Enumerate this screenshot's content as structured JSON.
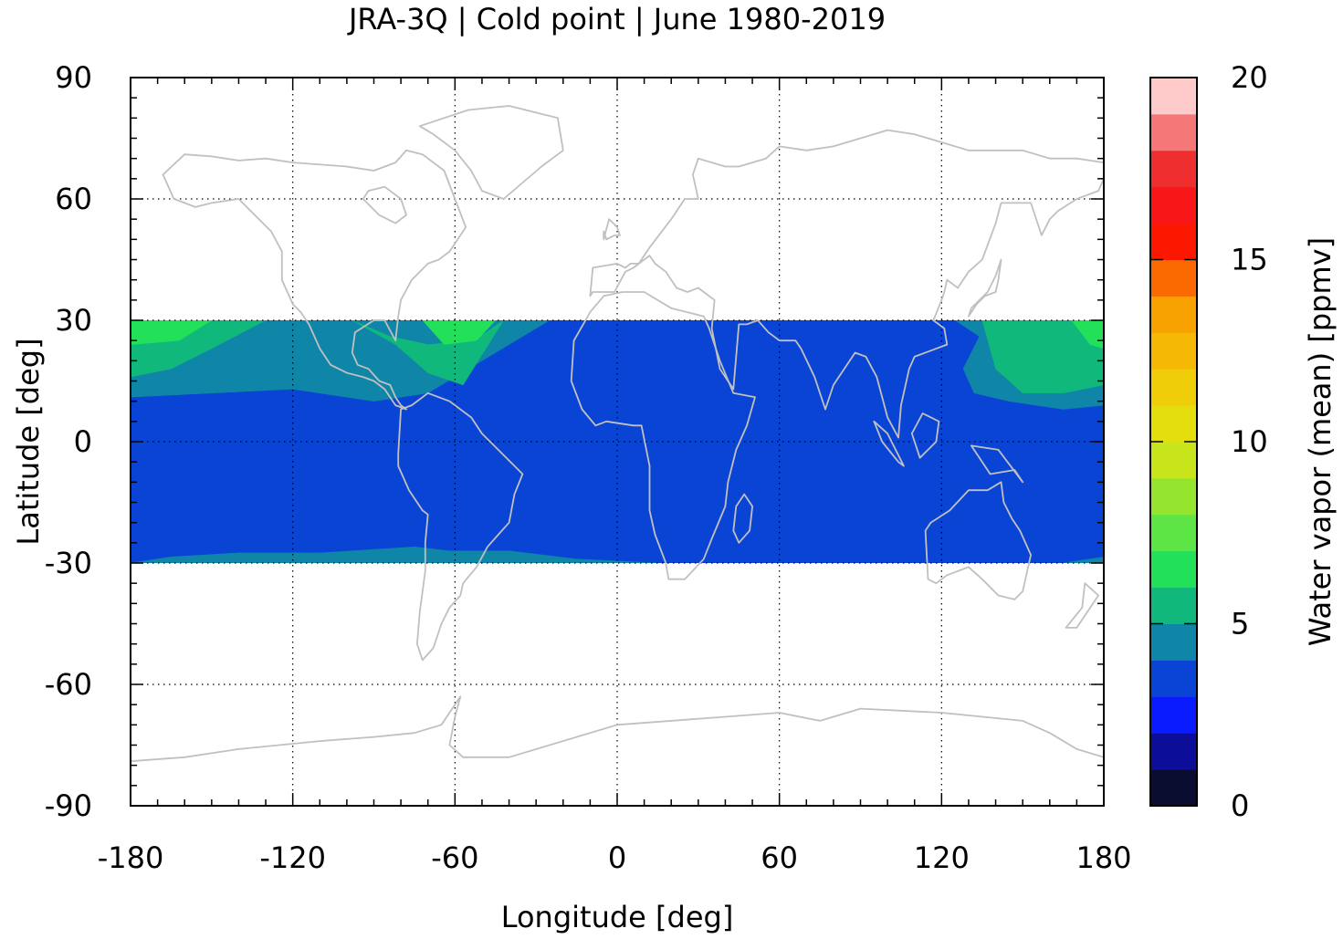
{
  "chart_data": {
    "type": "heatmap",
    "title": "JRA-3Q | Cold point | June 1980-2019",
    "xlabel": "Longitude [deg]",
    "ylabel": "Latitude [deg]",
    "xlim": [
      -180,
      180
    ],
    "ylim": [
      -90,
      90
    ],
    "xticks": [
      "-180",
      "-120",
      "-60",
      "0",
      "60",
      "120",
      "180"
    ],
    "yticks": [
      "90",
      "60",
      "30",
      "0",
      "-30",
      "-60",
      "-90"
    ],
    "xtick_values": [
      -180,
      -120,
      -60,
      0,
      60,
      120,
      180
    ],
    "ytick_values": [
      90,
      60,
      30,
      0,
      -30,
      -60,
      -90
    ],
    "grid": true,
    "data_lat_range": [
      -30,
      30
    ],
    "colorbar": {
      "label": "Water vapor (mean) [ppmv]",
      "range": [
        0,
        20
      ],
      "ticks": [
        "0",
        "5",
        "10",
        "15",
        "20"
      ],
      "tick_values": [
        0,
        5,
        10,
        15,
        20
      ],
      "levels": [
        {
          "from": 0,
          "to": 1,
          "color": "#0b0d30"
        },
        {
          "from": 1,
          "to": 2,
          "color": "#0c0e9a"
        },
        {
          "from": 2,
          "to": 3,
          "color": "#0a1cff"
        },
        {
          "from": 3,
          "to": 4,
          "color": "#0a44d4"
        },
        {
          "from": 4,
          "to": 5,
          "color": "#0f86a8"
        },
        {
          "from": 5,
          "to": 6,
          "color": "#10b87c"
        },
        {
          "from": 6,
          "to": 7,
          "color": "#22e05a"
        },
        {
          "from": 7,
          "to": 8,
          "color": "#5de445"
        },
        {
          "from": 8,
          "to": 9,
          "color": "#95e52e"
        },
        {
          "from": 9,
          "to": 10,
          "color": "#c7e51a"
        },
        {
          "from": 10,
          "to": 11,
          "color": "#e4de0e"
        },
        {
          "from": 11,
          "to": 12,
          "color": "#efcd08"
        },
        {
          "from": 12,
          "to": 13,
          "color": "#f5b805"
        },
        {
          "from": 13,
          "to": 14,
          "color": "#f7a200"
        },
        {
          "from": 14,
          "to": 15,
          "color": "#fb6a00"
        },
        {
          "from": 15,
          "to": 16,
          "color": "#fc1800"
        },
        {
          "from": 16,
          "to": 17,
          "color": "#f81619"
        },
        {
          "from": 17,
          "to": 18,
          "color": "#ef2f2f"
        },
        {
          "from": 18,
          "to": 19,
          "color": "#f47878"
        },
        {
          "from": 19,
          "to": 20,
          "color": "#ffcaca"
        }
      ]
    },
    "fields": {
      "background_level_ppmv": 3.5,
      "regions": [
        {
          "name": "tropical Pacific/Caribbean band",
          "level_ppmv": 4.5,
          "lon": [
            -180,
            -180,
            -150,
            -120,
            -90,
            -70,
            -55,
            -25,
            -180
          ],
          "lat": [
            30,
            11,
            12,
            13,
            10,
            12,
            18,
            30,
            30
          ]
        },
        {
          "name": "north-east Pacific high",
          "level_ppmv": 5.5,
          "lon": [
            -180,
            -180,
            -165,
            -150,
            -130,
            -145,
            -180
          ],
          "lat": [
            30,
            16,
            18,
            23,
            30,
            30,
            30
          ]
        },
        {
          "name": "north-east Pacific core",
          "level_ppmv": 6.5,
          "lon": [
            -180,
            -180,
            -162,
            -150,
            -180
          ],
          "lat": [
            30,
            24,
            25,
            30,
            30
          ]
        },
        {
          "name": "Gulf of Mexico / Atlantic high",
          "level_ppmv": 5.5,
          "lon": [
            -98,
            -82,
            -70,
            -57,
            -42,
            -53,
            -70,
            -84,
            -98
          ],
          "lat": [
            30,
            24,
            17,
            14,
            30,
            25,
            24,
            26,
            30
          ]
        },
        {
          "name": "Atlantic core",
          "level_ppmv": 6.5,
          "lon": [
            -72,
            -64,
            -52,
            -45,
            -72
          ],
          "lat": [
            30,
            24,
            25,
            30,
            30
          ]
        },
        {
          "name": "western Pacific band",
          "level_ppmv": 4.5,
          "lon": [
            125,
            134,
            128,
            132,
            145,
            165,
            180,
            180,
            125
          ],
          "lat": [
            30,
            26,
            18,
            12,
            10,
            8,
            9,
            30,
            30
          ]
        },
        {
          "name": "western Pacific high",
          "level_ppmv": 5.5,
          "lon": [
            135,
            140,
            150,
            165,
            180,
            180,
            135
          ],
          "lat": [
            30,
            18,
            12,
            12,
            14,
            30,
            30
          ]
        },
        {
          "name": "western Pacific core",
          "level_ppmv": 6.5,
          "lon": [
            168,
            175,
            180,
            180,
            168
          ],
          "lat": [
            30,
            24,
            23,
            30,
            30
          ]
        },
        {
          "name": "southern subtropical band",
          "level_ppmv": 4.5,
          "lon": [
            -180,
            -165,
            -140,
            -110,
            -75,
            -62,
            -40,
            -15,
            15,
            -180
          ],
          "lat": [
            -30,
            -28.5,
            -27.5,
            -27.5,
            -26,
            -27,
            -27,
            -29,
            -30,
            -30
          ]
        },
        {
          "name": "southern edge",
          "level_ppmv": 4.5,
          "lon": [
            165,
            180,
            180,
            165
          ],
          "lat": [
            -30,
            -28.5,
            -30,
            -30
          ]
        }
      ]
    },
    "coastline_color": "#c0c0c0",
    "coastlines": [
      {
        "name": "North America",
        "closed": true,
        "lon": [
          -168,
          -160,
          -150,
          -140,
          -130,
          -120,
          -100,
          -90,
          -82,
          -78,
          -72,
          -64,
          -60,
          -56,
          -62,
          -66,
          -70,
          -76,
          -80,
          -81,
          -82,
          -86,
          -90,
          -97,
          -98,
          -96,
          -92,
          -88,
          -84,
          -82,
          -80,
          -78,
          -82,
          -86,
          -90,
          -94,
          -100,
          -106,
          -110,
          -114,
          -117,
          -120,
          -124,
          -124,
          -128,
          -134,
          -140,
          -150,
          -156,
          -160,
          -164,
          -166,
          -168
        ],
        "lat": [
          66,
          71,
          70.5,
          69.5,
          70,
          69,
          68,
          67,
          69,
          72,
          71,
          67,
          60,
          53,
          47,
          45,
          44,
          40,
          35,
          31,
          25,
          30,
          30,
          27,
          22,
          19,
          18,
          15,
          14,
          11,
          9,
          8,
          9,
          13,
          15,
          16,
          17,
          19,
          23,
          29,
          32,
          34,
          40,
          47,
          52,
          56,
          60,
          59,
          58,
          59,
          60,
          63,
          66
        ]
      },
      {
        "name": "Hudson Bay",
        "closed": true,
        "lon": [
          -94,
          -88,
          -82,
          -78,
          -80,
          -86,
          -92,
          -94
        ],
        "lat": [
          60,
          56,
          54,
          56,
          60,
          63,
          62,
          60
        ]
      },
      {
        "name": "Greenland",
        "closed": true,
        "lon": [
          -73,
          -55,
          -40,
          -22,
          -20,
          -28,
          -42,
          -50,
          -54,
          -60,
          -68,
          -73
        ],
        "lat": [
          78,
          82,
          83,
          80,
          72,
          68,
          60,
          62,
          67,
          72,
          76,
          78
        ]
      },
      {
        "name": "South America",
        "closed": true,
        "lon": [
          -80,
          -76,
          -70,
          -62,
          -54,
          -50,
          -44,
          -38,
          -35,
          -38,
          -40,
          -44,
          -48,
          -52,
          -57,
          -58,
          -62,
          -65,
          -66,
          -68,
          -72,
          -74,
          -73,
          -71,
          -71,
          -70,
          -72,
          -77,
          -81,
          -81,
          -80
        ],
        "lat": [
          8,
          9,
          12,
          10,
          6,
          2,
          -2,
          -6,
          -8,
          -13,
          -20,
          -23,
          -26,
          -31,
          -35,
          -38,
          -41,
          -45,
          -47,
          -51,
          -54,
          -50,
          -42,
          -32,
          -25,
          -18,
          -17,
          -12,
          -6,
          -3,
          8
        ]
      },
      {
        "name": "Africa",
        "closed": true,
        "lon": [
          -17,
          -16,
          -10,
          -5,
          2,
          10,
          20,
          32,
          34,
          38,
          43,
          51,
          48,
          44,
          41,
          40,
          35,
          32,
          25,
          19,
          18,
          14,
          12,
          12,
          9,
          6,
          -4,
          -8,
          -13,
          -17
        ],
        "lat": [
          15,
          25,
          32,
          36,
          37,
          37,
          33,
          31,
          28,
          20,
          12,
          11,
          4,
          -2,
          -10,
          -16,
          -24,
          -29,
          -34,
          -34,
          -30,
          -23,
          -17,
          -6,
          4,
          4,
          5,
          4,
          8,
          15
        ]
      },
      {
        "name": "Madagascar",
        "closed": true,
        "lon": [
          44,
          47,
          50,
          49,
          45,
          43,
          44
        ],
        "lat": [
          -16,
          -13,
          -16,
          -22,
          -25,
          -22,
          -16
        ]
      },
      {
        "name": "Eurasia",
        "closed": true,
        "lon": [
          -10,
          -9,
          0,
          3,
          5,
          8,
          12,
          20,
          25,
          30,
          28,
          30,
          40,
          45,
          55,
          60,
          70,
          80,
          100,
          110,
          130,
          140,
          150,
          160,
          170,
          180,
          180,
          178,
          170,
          163,
          160,
          157,
          153,
          142,
          140,
          135,
          130,
          126,
          122,
          121,
          120,
          117,
          121,
          122,
          110,
          108,
          106,
          105,
          104,
          100,
          98,
          96,
          92,
          88,
          85,
          80,
          77,
          73,
          68,
          66,
          60,
          56,
          52,
          48,
          45,
          43,
          38,
          35,
          36,
          34,
          30,
          26,
          22,
          18,
          14,
          12,
          6,
          3,
          -1,
          -9,
          -10
        ],
        "lat": [
          36,
          43,
          44,
          43,
          44,
          44,
          48,
          55,
          60,
          60,
          66,
          70,
          68,
          68,
          70,
          73,
          72,
          73,
          77,
          76,
          72,
          72,
          72,
          70,
          70,
          69,
          65,
          62,
          60,
          57,
          55,
          51,
          59,
          59,
          54,
          45,
          42,
          38,
          40,
          37,
          35,
          30,
          28,
          24,
          21,
          18,
          12,
          9,
          1,
          6,
          11,
          16,
          21,
          22,
          19,
          14,
          8,
          16,
          23,
          25,
          25,
          27,
          30,
          29,
          29,
          13,
          18,
          28,
          35,
          36,
          38,
          37,
          38,
          42,
          44,
          46,
          43,
          42,
          37,
          37,
          36
        ]
      },
      {
        "name": "Great Britain",
        "closed": true,
        "lon": [
          -5,
          -3,
          0,
          1,
          -1,
          -4,
          -5,
          -5
        ],
        "lat": [
          50,
          55,
          53,
          51,
          51,
          50,
          52,
          50
        ]
      },
      {
        "name": "Japan",
        "closed": true,
        "lon": [
          130,
          133,
          136,
          140,
          141,
          142,
          140,
          137,
          131,
          130
        ],
        "lat": [
          31,
          34,
          36,
          37,
          40,
          45,
          41,
          37,
          33,
          31
        ]
      },
      {
        "name": "Sumatra",
        "closed": true,
        "lon": [
          95,
          100,
          106,
          104,
          98,
          95
        ],
        "lat": [
          5,
          2,
          -6,
          -5,
          0,
          5
        ]
      },
      {
        "name": "Borneo",
        "closed": true,
        "lon": [
          109,
          113,
          119,
          118,
          112,
          109
        ],
        "lat": [
          2,
          7,
          5,
          0,
          -4,
          2
        ]
      },
      {
        "name": "New Guinea",
        "closed": true,
        "lon": [
          131,
          141,
          150,
          147,
          138,
          131
        ],
        "lat": [
          -1,
          -2,
          -10,
          -7,
          -8,
          -1
        ]
      },
      {
        "name": "Australia",
        "closed": true,
        "lon": [
          114,
          116,
          123,
          130,
          137,
          142,
          143,
          146,
          149,
          153,
          150,
          147,
          141,
          135,
          130,
          122,
          118,
          115,
          114
        ],
        "lat": [
          -22,
          -20,
          -17,
          -12,
          -12,
          -10,
          -15,
          -19,
          -22,
          -28,
          -37,
          -39,
          -38,
          -34,
          -31,
          -33,
          -35,
          -34,
          -22
        ]
      },
      {
        "name": "New Zealand",
        "closed": true,
        "lon": [
          173,
          178,
          175,
          170,
          166,
          172,
          173
        ],
        "lat": [
          -35,
          -38,
          -41,
          -46,
          -46,
          -41,
          -35
        ]
      },
      {
        "name": "Antarctica",
        "closed": false,
        "lon": [
          -180,
          -160,
          -140,
          -110,
          -90,
          -75,
          -65,
          -58,
          -60,
          -62,
          -57,
          -40,
          0,
          40,
          60,
          75,
          90,
          120,
          150,
          160,
          170,
          180
        ],
        "lat": [
          -79,
          -78,
          -76,
          -74,
          -73,
          -72,
          -70,
          -63,
          -68,
          -75,
          -78,
          -78,
          -70,
          -68,
          -67,
          -69,
          -66,
          -67,
          -69,
          -72,
          -76,
          -78
        ]
      }
    ]
  }
}
